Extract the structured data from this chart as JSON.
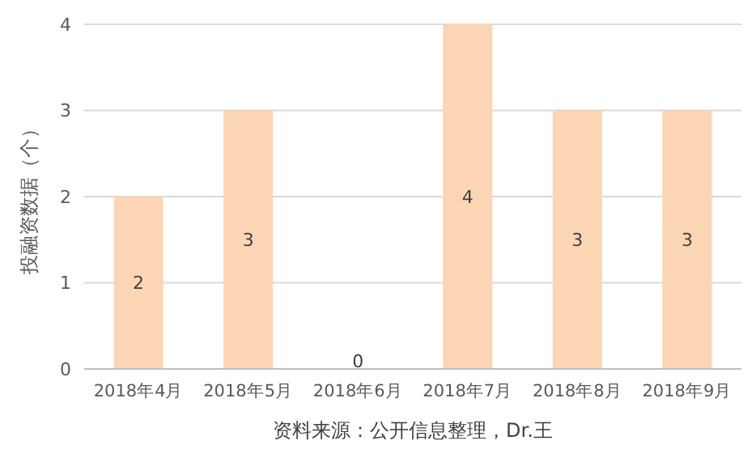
{
  "chart_data": {
    "type": "bar",
    "ylabel": "投融资数据（个）",
    "categories": [
      "2018年4月",
      "2018年5月",
      "2018年6月",
      "2018年7月",
      "2018年8月",
      "2018年9月"
    ],
    "values": [
      2,
      3,
      0,
      4,
      3,
      3
    ],
    "color": "#fcd5b5",
    "ylim": [
      0,
      4
    ],
    "yticks": [
      0,
      1,
      2,
      3,
      4
    ],
    "grid": "y",
    "data_labels": true,
    "annotations": [
      "资料来源：公开信息整理，Dr.王"
    ]
  }
}
